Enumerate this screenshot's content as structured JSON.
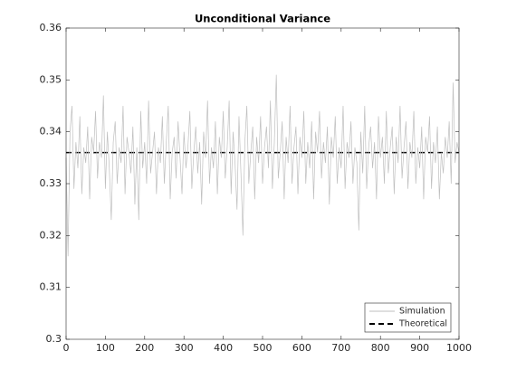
{
  "chart_data": {
    "type": "line",
    "title": "Unconditional Variance",
    "xlim": [
      0,
      1000
    ],
    "xticks": [
      0,
      100,
      200,
      300,
      400,
      500,
      600,
      700,
      800,
      900,
      1000
    ],
    "ylim": [
      0.3,
      0.36
    ],
    "yticks": [
      0.3,
      0.31,
      0.32,
      0.33,
      0.34,
      0.35,
      0.36
    ],
    "legend": "lower right",
    "series": [
      {
        "name": "Simulation",
        "color": "#bfbfbf",
        "linestyle": "solid",
        "x": [
          0,
          5,
          10,
          15,
          20,
          25,
          30,
          35,
          40,
          45,
          50,
          55,
          60,
          65,
          70,
          75,
          80,
          85,
          90,
          95,
          100,
          105,
          110,
          115,
          120,
          125,
          130,
          135,
          140,
          145,
          150,
          155,
          160,
          165,
          170,
          175,
          180,
          185,
          190,
          195,
          200,
          205,
          210,
          215,
          220,
          225,
          230,
          235,
          240,
          245,
          250,
          255,
          260,
          265,
          270,
          275,
          280,
          285,
          290,
          295,
          300,
          305,
          310,
          315,
          320,
          325,
          330,
          335,
          340,
          345,
          350,
          355,
          360,
          365,
          370,
          375,
          380,
          385,
          390,
          395,
          400,
          405,
          410,
          415,
          420,
          425,
          430,
          435,
          440,
          445,
          450,
          455,
          460,
          465,
          470,
          475,
          480,
          485,
          490,
          495,
          500,
          505,
          510,
          515,
          520,
          525,
          530,
          535,
          540,
          545,
          550,
          555,
          560,
          565,
          570,
          575,
          580,
          585,
          590,
          595,
          600,
          605,
          610,
          615,
          620,
          625,
          630,
          635,
          640,
          645,
          650,
          655,
          660,
          665,
          670,
          675,
          680,
          685,
          690,
          695,
          700,
          705,
          710,
          715,
          720,
          725,
          730,
          735,
          740,
          745,
          750,
          755,
          760,
          765,
          770,
          775,
          780,
          785,
          790,
          795,
          800,
          805,
          810,
          815,
          820,
          825,
          830,
          835,
          840,
          845,
          850,
          855,
          860,
          865,
          870,
          875,
          880,
          885,
          890,
          895,
          900,
          905,
          910,
          915,
          920,
          925,
          930,
          935,
          940,
          945,
          950,
          955,
          960,
          965,
          970,
          975,
          980,
          985,
          990,
          995,
          1000
        ],
        "values": [
          0.335,
          0.316,
          0.34,
          0.345,
          0.329,
          0.338,
          0.333,
          0.343,
          0.328,
          0.337,
          0.334,
          0.341,
          0.327,
          0.339,
          0.336,
          0.344,
          0.331,
          0.338,
          0.335,
          0.347,
          0.329,
          0.34,
          0.333,
          0.323,
          0.338,
          0.342,
          0.33,
          0.337,
          0.334,
          0.345,
          0.328,
          0.339,
          0.336,
          0.332,
          0.341,
          0.326,
          0.337,
          0.323,
          0.344,
          0.333,
          0.338,
          0.33,
          0.346,
          0.332,
          0.336,
          0.34,
          0.328,
          0.337,
          0.334,
          0.343,
          0.33,
          0.338,
          0.345,
          0.327,
          0.336,
          0.339,
          0.331,
          0.342,
          0.335,
          0.328,
          0.34,
          0.333,
          0.337,
          0.344,
          0.329,
          0.336,
          0.341,
          0.332,
          0.338,
          0.326,
          0.34,
          0.335,
          0.346,
          0.33,
          0.337,
          0.333,
          0.342,
          0.328,
          0.339,
          0.335,
          0.344,
          0.331,
          0.337,
          0.346,
          0.328,
          0.34,
          0.334,
          0.325,
          0.343,
          0.332,
          0.32,
          0.338,
          0.345,
          0.33,
          0.336,
          0.341,
          0.327,
          0.339,
          0.334,
          0.343,
          0.33,
          0.337,
          0.341,
          0.333,
          0.346,
          0.329,
          0.338,
          0.351,
          0.331,
          0.336,
          0.342,
          0.327,
          0.339,
          0.334,
          0.345,
          0.33,
          0.337,
          0.341,
          0.328,
          0.339,
          0.335,
          0.344,
          0.33,
          0.338,
          0.333,
          0.342,
          0.327,
          0.34,
          0.336,
          0.344,
          0.331,
          0.338,
          0.334,
          0.341,
          0.326,
          0.339,
          0.335,
          0.343,
          0.33,
          0.337,
          0.333,
          0.345,
          0.329,
          0.338,
          0.335,
          0.342,
          0.33,
          0.337,
          0.334,
          0.321,
          0.34,
          0.332,
          0.345,
          0.329,
          0.337,
          0.341,
          0.333,
          0.338,
          0.327,
          0.343,
          0.335,
          0.339,
          0.33,
          0.344,
          0.332,
          0.337,
          0.341,
          0.328,
          0.339,
          0.334,
          0.345,
          0.331,
          0.337,
          0.342,
          0.329,
          0.338,
          0.335,
          0.344,
          0.33,
          0.337,
          0.333,
          0.341,
          0.327,
          0.339,
          0.336,
          0.343,
          0.329,
          0.338,
          0.334,
          0.341,
          0.327,
          0.336,
          0.332,
          0.339,
          0.335,
          0.342,
          0.33,
          0.3495,
          0.334,
          0.338,
          0.336
        ]
      },
      {
        "name": "Theoretical",
        "color": "#000000",
        "linestyle": "dashed",
        "x": [
          0,
          1000
        ],
        "values": [
          0.336,
          0.336
        ]
      }
    ]
  }
}
